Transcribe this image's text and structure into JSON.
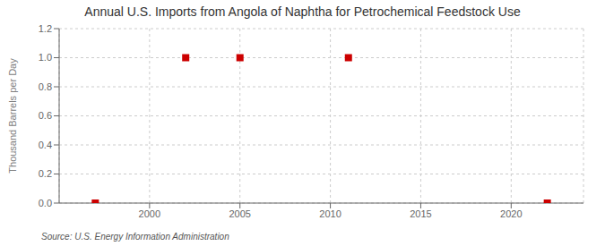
{
  "chart_data": {
    "type": "scatter",
    "title": "Annual U.S. Imports from Angola of Naphtha for Petrochemical Feedstock Use",
    "ylabel": "Thousand Barrels per Day",
    "annotations": [
      "Source: U.S. Energy Information Administration"
    ],
    "x": [
      1997,
      2002,
      2005,
      2011,
      2022
    ],
    "values": [
      0.0,
      1.0,
      1.0,
      1.0,
      0.0
    ],
    "color": "#cc0000",
    "marker": "square",
    "xlim": [
      1995,
      2024
    ],
    "xticks": [
      2000,
      2005,
      2010,
      2015,
      2020
    ],
    "ylim": [
      0.0,
      1.2
    ],
    "yticks": [
      {
        "value": 0.0,
        "label": "0.0"
      },
      {
        "value": 0.2,
        "label": "0.2"
      },
      {
        "value": 0.4,
        "label": "0.4"
      },
      {
        "value": 0.6,
        "label": "0.6"
      },
      {
        "value": 0.8,
        "label": "0.8"
      },
      {
        "value": 1.0,
        "label": "1.0"
      },
      {
        "value": 1.2,
        "label": "1.2"
      }
    ],
    "grid": true
  }
}
